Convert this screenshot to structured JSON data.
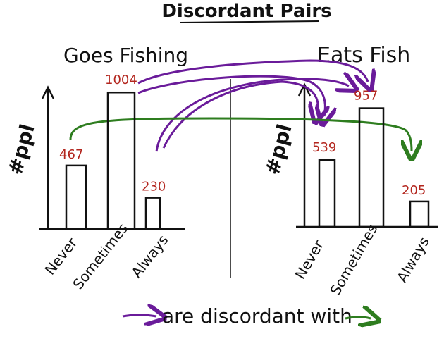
{
  "chart_data": [
    {
      "type": "bar",
      "title": "Goes Fishing",
      "ylabel": "#ppl",
      "categories": [
        "Never",
        "Sometimes",
        "Always"
      ],
      "values": [
        467,
        1004,
        230
      ],
      "value_labels": [
        "467",
        "1004",
        "230"
      ]
    },
    {
      "type": "bar",
      "title": "Eats Fish",
      "ylabel": "#ppl",
      "categories": [
        "Never",
        "Sometimes",
        "Always"
      ],
      "values": [
        539,
        957,
        205
      ],
      "value_labels": [
        "539",
        "957",
        "205"
      ]
    }
  ],
  "figure": {
    "title": "Discordant Pairs",
    "legend_text": "are discordant with",
    "colors": {
      "ink": "#111111",
      "value_label": "#b3261e",
      "purple_arrow": "#6a1b9a",
      "green_arrow": "#2e7d1f"
    }
  }
}
